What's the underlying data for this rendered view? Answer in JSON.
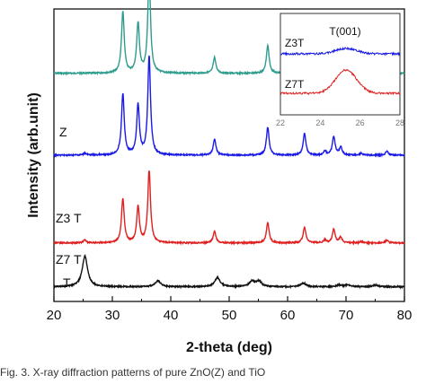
{
  "chart_data": {
    "type": "line",
    "xlabel": "2-theta (deg)",
    "ylabel": "Intensity (arb.unit)",
    "xlim": [
      20,
      80
    ],
    "xticks": [
      20,
      30,
      40,
      50,
      60,
      70,
      80
    ],
    "colors": {
      "Z": "#2e9c8c",
      "Z3T": "#1a1ae6",
      "Z7T": "#e02020",
      "T": "#111111"
    },
    "series": [
      {
        "key": "Z",
        "name": "Z",
        "baseline": 0.78,
        "amp_scale": 1.0,
        "peaks": [
          [
            31.8,
            0.62
          ],
          [
            34.4,
            0.5
          ],
          [
            36.3,
            1.0
          ],
          [
            47.5,
            0.16
          ],
          [
            56.6,
            0.28
          ],
          [
            62.9,
            0.22
          ],
          [
            66.4,
            0.04
          ],
          [
            67.9,
            0.19
          ],
          [
            69.1,
            0.08
          ],
          [
            72.6,
            0.02
          ],
          [
            77.0,
            0.04
          ]
        ]
      },
      {
        "key": "Z3T",
        "name": "Z3 T",
        "baseline": 0.5,
        "amp_scale": 1.0,
        "peaks": [
          [
            25.3,
            0.02
          ],
          [
            31.8,
            0.62
          ],
          [
            34.4,
            0.5
          ],
          [
            36.3,
            1.0
          ],
          [
            47.5,
            0.16
          ],
          [
            56.6,
            0.28
          ],
          [
            62.9,
            0.22
          ],
          [
            66.4,
            0.04
          ],
          [
            67.9,
            0.19
          ],
          [
            69.1,
            0.08
          ],
          [
            72.6,
            0.02
          ],
          [
            77.0,
            0.04
          ]
        ]
      },
      {
        "key": "Z7T",
        "name": "Z7 T",
        "baseline": 0.2,
        "amp_scale": 1.0,
        "peaks": [
          [
            25.3,
            0.04
          ],
          [
            31.8,
            0.62
          ],
          [
            34.4,
            0.5
          ],
          [
            36.3,
            1.0
          ],
          [
            47.5,
            0.16
          ],
          [
            56.6,
            0.28
          ],
          [
            62.9,
            0.22
          ],
          [
            66.4,
            0.04
          ],
          [
            67.9,
            0.19
          ],
          [
            69.1,
            0.08
          ],
          [
            72.6,
            0.02
          ],
          [
            77.0,
            0.04
          ]
        ]
      },
      {
        "key": "T",
        "name": "T",
        "baseline": 0.05,
        "amp_scale": 1.0,
        "peaks": [
          [
            25.3,
            1.0
          ],
          [
            37.8,
            0.2
          ],
          [
            48.0,
            0.3
          ],
          [
            53.9,
            0.18
          ],
          [
            55.1,
            0.18
          ],
          [
            62.7,
            0.12
          ],
          [
            68.8,
            0.06
          ],
          [
            70.3,
            0.06
          ],
          [
            75.0,
            0.06
          ]
        ]
      }
    ],
    "inset": {
      "xlim": [
        22,
        28
      ],
      "xticks": [
        22,
        24,
        26,
        28
      ],
      "annotation": "T(001)",
      "series": [
        {
          "key": "Z3T",
          "name": "Z3T",
          "center": 25.3,
          "height": 0.12
        },
        {
          "key": "Z7T",
          "name": "Z7T",
          "center": 25.3,
          "height": 0.55
        }
      ]
    }
  },
  "caption": "Fig. 3. X-ray diffraction patterns of pure ZnO(Z) and TiO"
}
